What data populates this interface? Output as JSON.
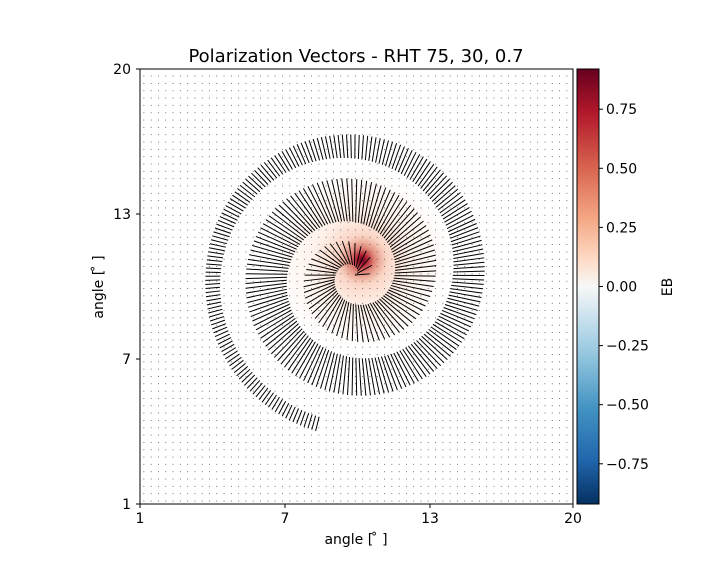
{
  "chart_data": {
    "type": "heatmap",
    "title": "Polarization Vectors - RHT 75, 30, 0.7",
    "xlabel": "angle [$^\\circ$]",
    "xlabel_display": "angle [ ̊ ]",
    "ylabel_display": "angle [ ̊ ]",
    "x_ticks": [
      "1",
      "7",
      "13",
      "20"
    ],
    "y_ticks": [
      "1",
      "7",
      "13",
      "20"
    ],
    "xlim": [
      1,
      20
    ],
    "ylim": [
      1,
      20
    ],
    "colorbar": {
      "label": "EB",
      "colormap": "RdBu_r",
      "range": [
        -0.92,
        0.92
      ],
      "ticks": [
        "0.75",
        "0.50",
        "0.25",
        "0.00",
        "−0.25",
        "−0.50",
        "−0.75"
      ],
      "tick_values": [
        0.75,
        0.5,
        0.25,
        0.0,
        -0.25,
        -0.5,
        -0.75
      ]
    },
    "spiral": {
      "center": [
        10.4,
        11.0
      ],
      "turns": 2.7,
      "inner_radius": 0.35,
      "outer_radius": 6.7,
      "end_point": [
        8.8,
        4.3
      ]
    },
    "hotspot": {
      "center": [
        10.3,
        11.1
      ],
      "peak": 0.9
    },
    "vector_grid_spacing": 0.32,
    "colors": {
      "vector": "#000000",
      "background_dot": "#555555",
      "spine": "#000000"
    }
  }
}
